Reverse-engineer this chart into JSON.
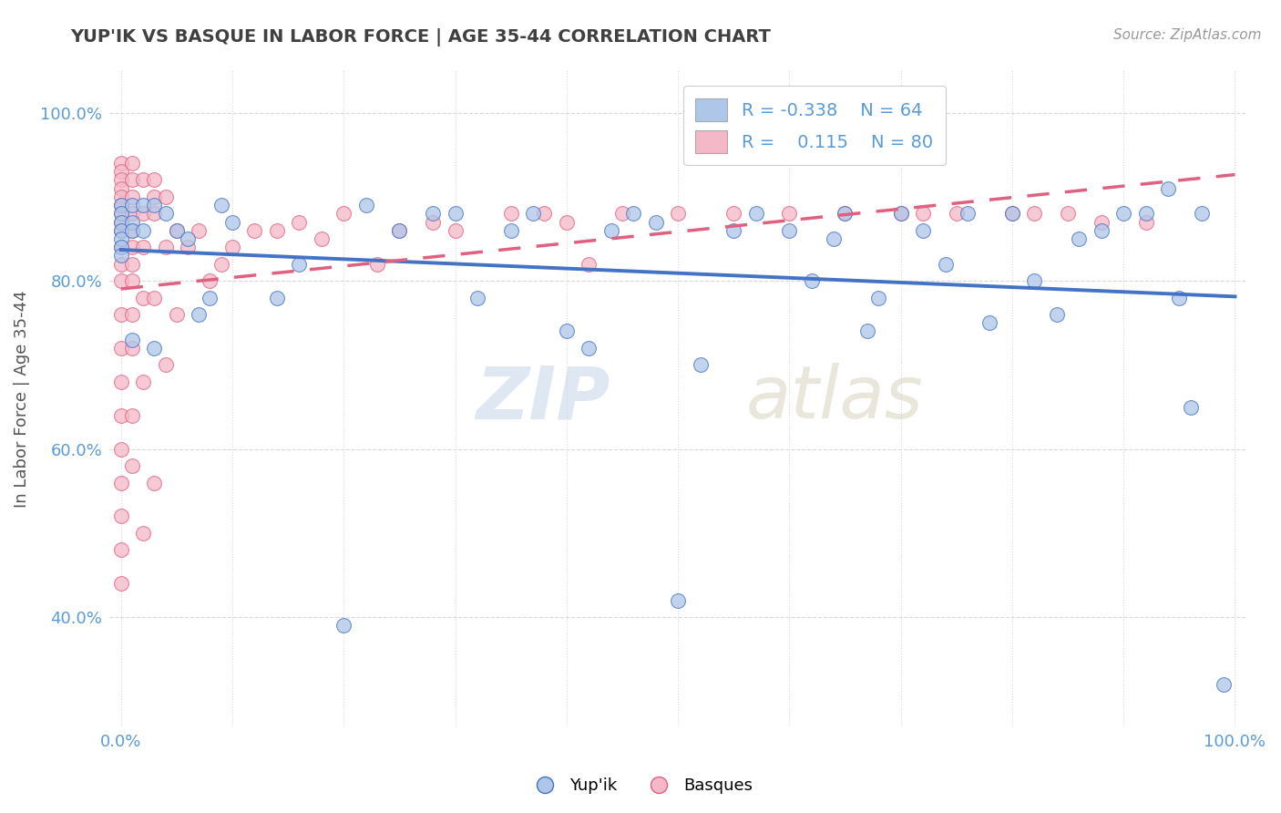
{
  "title": "YUP'IK VS BASQUE IN LABOR FORCE | AGE 35-44 CORRELATION CHART",
  "source_text": "Source: ZipAtlas.com",
  "ylabel": "In Labor Force | Age 35-44",
  "xlim": [
    -0.01,
    1.01
  ],
  "ylim": [
    0.27,
    1.05
  ],
  "color_yupik": "#aec6e8",
  "color_basque": "#f4b8c8",
  "trend_color_yupik": "#4472c4",
  "trend_color_basque": "#e06080",
  "watermark_zip": "ZIP",
  "watermark_atlas": "atlas",
  "background_color": "#ffffff",
  "grid_color": "#d8d8d8",
  "yupik_x": [
    0.0,
    0.0,
    0.0,
    0.0,
    0.0,
    0.0,
    0.0,
    0.01,
    0.01,
    0.01,
    0.01,
    0.02,
    0.02,
    0.03,
    0.03,
    0.04,
    0.05,
    0.06,
    0.07,
    0.08,
    0.09,
    0.1,
    0.14,
    0.16,
    0.2,
    0.22,
    0.25,
    0.28,
    0.3,
    0.32,
    0.35,
    0.37,
    0.4,
    0.42,
    0.44,
    0.46,
    0.48,
    0.5,
    0.52,
    0.55,
    0.57,
    0.6,
    0.62,
    0.64,
    0.65,
    0.67,
    0.68,
    0.7,
    0.72,
    0.74,
    0.76,
    0.78,
    0.8,
    0.82,
    0.84,
    0.86,
    0.88,
    0.9,
    0.92,
    0.94,
    0.95,
    0.96,
    0.97,
    0.99
  ],
  "yupik_y": [
    0.89,
    0.88,
    0.87,
    0.86,
    0.85,
    0.84,
    0.83,
    0.89,
    0.87,
    0.86,
    0.73,
    0.89,
    0.86,
    0.89,
    0.72,
    0.88,
    0.86,
    0.85,
    0.76,
    0.78,
    0.89,
    0.87,
    0.78,
    0.82,
    0.39,
    0.89,
    0.86,
    0.88,
    0.88,
    0.78,
    0.86,
    0.88,
    0.74,
    0.72,
    0.86,
    0.88,
    0.87,
    0.42,
    0.7,
    0.86,
    0.88,
    0.86,
    0.8,
    0.85,
    0.88,
    0.74,
    0.78,
    0.88,
    0.86,
    0.82,
    0.88,
    0.75,
    0.88,
    0.8,
    0.76,
    0.85,
    0.86,
    0.88,
    0.88,
    0.91,
    0.78,
    0.65,
    0.88,
    0.32
  ],
  "basque_x": [
    0.0,
    0.0,
    0.0,
    0.0,
    0.0,
    0.0,
    0.0,
    0.0,
    0.0,
    0.0,
    0.0,
    0.0,
    0.0,
    0.0,
    0.0,
    0.0,
    0.0,
    0.0,
    0.0,
    0.0,
    0.0,
    0.01,
    0.01,
    0.01,
    0.01,
    0.01,
    0.01,
    0.01,
    0.01,
    0.01,
    0.01,
    0.01,
    0.01,
    0.02,
    0.02,
    0.02,
    0.02,
    0.02,
    0.02,
    0.03,
    0.03,
    0.03,
    0.03,
    0.03,
    0.04,
    0.04,
    0.04,
    0.05,
    0.05,
    0.06,
    0.07,
    0.08,
    0.09,
    0.1,
    0.12,
    0.14,
    0.16,
    0.18,
    0.2,
    0.23,
    0.25,
    0.28,
    0.3,
    0.35,
    0.38,
    0.4,
    0.42,
    0.45,
    0.5,
    0.55,
    0.6,
    0.65,
    0.7,
    0.72,
    0.75,
    0.8,
    0.82,
    0.85,
    0.88,
    0.92
  ],
  "basque_y": [
    0.94,
    0.93,
    0.92,
    0.91,
    0.9,
    0.89,
    0.88,
    0.87,
    0.86,
    0.84,
    0.82,
    0.8,
    0.76,
    0.72,
    0.68,
    0.64,
    0.6,
    0.56,
    0.52,
    0.48,
    0.44,
    0.94,
    0.92,
    0.9,
    0.88,
    0.86,
    0.84,
    0.82,
    0.8,
    0.76,
    0.72,
    0.64,
    0.58,
    0.92,
    0.88,
    0.84,
    0.78,
    0.68,
    0.5,
    0.92,
    0.9,
    0.88,
    0.78,
    0.56,
    0.9,
    0.84,
    0.7,
    0.86,
    0.76,
    0.84,
    0.86,
    0.8,
    0.82,
    0.84,
    0.86,
    0.86,
    0.87,
    0.85,
    0.88,
    0.82,
    0.86,
    0.87,
    0.86,
    0.88,
    0.88,
    0.87,
    0.82,
    0.88,
    0.88,
    0.88,
    0.88,
    0.88,
    0.88,
    0.88,
    0.88,
    0.88,
    0.88,
    0.88,
    0.87,
    0.87
  ]
}
